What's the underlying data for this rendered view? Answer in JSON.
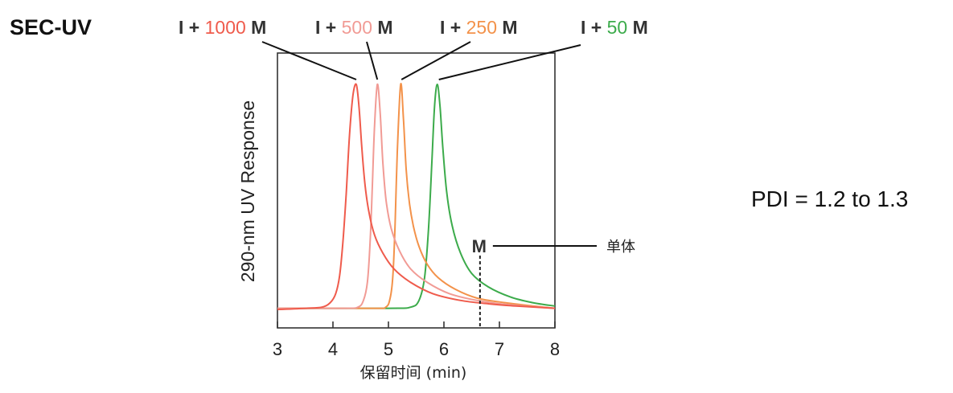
{
  "heading": "SEC-UV",
  "pdi": "PDI = 1.2 to 1.3",
  "chart_data": {
    "type": "line",
    "xlabel": "保留时间 (min)",
    "ylabel": "290-nm UV Response",
    "xlim": [
      3,
      8
    ],
    "x_ticks": [
      "3",
      "4",
      "5",
      "6",
      "7",
      "8"
    ],
    "ylim": [
      0,
      1
    ],
    "grid": false,
    "series": [
      {
        "name": "I + 1000 M",
        "label_prefix": "I + ",
        "label_number": "1000",
        "label_suffix": " M",
        "color": "#ef5b4c",
        "peak_x": 4.42,
        "x": [
          3.0,
          3.5,
          3.8,
          3.95,
          4.05,
          4.12,
          4.18,
          4.24,
          4.3,
          4.36,
          4.42,
          4.47,
          4.52,
          4.58,
          4.65,
          4.75,
          4.9,
          5.1,
          5.4,
          5.8,
          6.3,
          6.8,
          7.3,
          8.0
        ],
        "y": [
          0.0,
          0.005,
          0.01,
          0.03,
          0.07,
          0.15,
          0.3,
          0.52,
          0.78,
          0.95,
          1.0,
          0.9,
          0.72,
          0.55,
          0.43,
          0.33,
          0.25,
          0.18,
          0.12,
          0.07,
          0.04,
          0.025,
          0.015,
          0.005
        ]
      },
      {
        "name": "I + 500 M",
        "label_prefix": "I + ",
        "label_number": "500",
        "label_suffix": " M",
        "color": "#f19b95",
        "peak_x": 4.8,
        "x": [
          3.0,
          4.2,
          4.45,
          4.55,
          4.62,
          4.67,
          4.71,
          4.75,
          4.8,
          4.85,
          4.9,
          4.96,
          5.05,
          5.2,
          5.4,
          5.7,
          6.1,
          6.6,
          7.2,
          8.0
        ],
        "y": [
          0.005,
          0.005,
          0.01,
          0.04,
          0.12,
          0.3,
          0.55,
          0.82,
          1.0,
          0.88,
          0.65,
          0.48,
          0.36,
          0.26,
          0.18,
          0.12,
          0.07,
          0.04,
          0.02,
          0.005
        ]
      },
      {
        "name": "I + 250 M",
        "label_prefix": "I + ",
        "label_number": "250",
        "label_suffix": " M",
        "color": "#f3924a",
        "peak_x": 5.22,
        "x": [
          3.0,
          4.7,
          4.95,
          5.03,
          5.08,
          5.12,
          5.16,
          5.22,
          5.27,
          5.32,
          5.38,
          5.45,
          5.55,
          5.7,
          5.9,
          6.2,
          6.6,
          7.1,
          7.6,
          8.0
        ],
        "y": [
          0.005,
          0.005,
          0.01,
          0.05,
          0.15,
          0.38,
          0.7,
          1.0,
          0.85,
          0.62,
          0.47,
          0.37,
          0.28,
          0.2,
          0.14,
          0.09,
          0.05,
          0.03,
          0.015,
          0.005
        ]
      },
      {
        "name": "I + 50 M",
        "label_prefix": "I + ",
        "label_number": "50",
        "label_suffix": " M",
        "color": "#3cab4b",
        "peak_x": 5.88,
        "x": [
          3.0,
          5.0,
          5.4,
          5.55,
          5.65,
          5.72,
          5.78,
          5.83,
          5.88,
          5.93,
          5.98,
          6.05,
          6.15,
          6.3,
          6.5,
          6.8,
          7.2,
          7.6,
          8.0
        ],
        "y": [
          0.005,
          0.005,
          0.01,
          0.04,
          0.14,
          0.35,
          0.64,
          0.9,
          1.0,
          0.9,
          0.72,
          0.52,
          0.37,
          0.25,
          0.16,
          0.1,
          0.055,
          0.03,
          0.015
        ]
      }
    ],
    "annotation": {
      "label": "M",
      "text": "单体",
      "x": 6.65
    }
  }
}
